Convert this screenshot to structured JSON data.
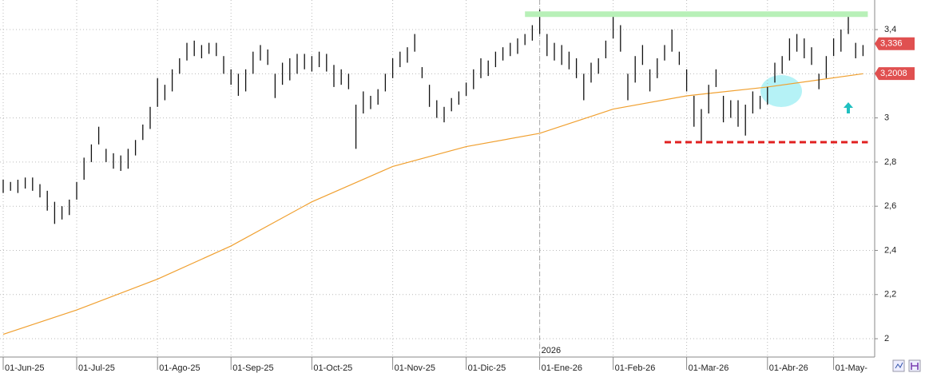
{
  "chart_data": {
    "type": "hl_bars",
    "lows": [
      2.66,
      2.67,
      2.66,
      2.68,
      2.67,
      2.64,
      2.58,
      2.52,
      2.54,
      2.56,
      2.63,
      2.72,
      2.8,
      2.88,
      2.8,
      2.77,
      2.76,
      2.77,
      2.83,
      2.9,
      2.95,
      3.05,
      3.08,
      3.12,
      3.2,
      3.26,
      3.28,
      3.27,
      3.29,
      3.28,
      3.2,
      3.15,
      3.1,
      3.12,
      3.2,
      3.26,
      3.24,
      3.09,
      3.15,
      3.17,
      3.2,
      3.22,
      3.21,
      3.23,
      3.21,
      3.14,
      3.15,
      3.13,
      2.86,
      3.02,
      3.04,
      3.06,
      3.12,
      3.18,
      3.23,
      3.25,
      3.3,
      3.18,
      3.05,
      3.0,
      2.98,
      3.03,
      3.06,
      3.1,
      3.13,
      3.18,
      3.19,
      3.23,
      3.26,
      3.28,
      3.29,
      3.33,
      3.35,
      3.38,
      3.28,
      3.26,
      3.24,
      3.22,
      3.18,
      3.08,
      3.16,
      3.2,
      3.27,
      3.36,
      3.3,
      3.08,
      3.16,
      3.24,
      3.12,
      3.18,
      3.26,
      3.3,
      3.24,
      3.12,
      2.96,
      2.89,
      3.02,
      3.14,
      2.98,
      3.0,
      2.96,
      2.92,
      3.02,
      3.04,
      3.06,
      3.16,
      3.2,
      3.26,
      3.3,
      3.27,
      3.24,
      3.13,
      3.18,
      3.28,
      3.3,
      3.38,
      3.27,
      3.28
    ],
    "highs": [
      2.72,
      2.71,
      2.72,
      2.73,
      2.73,
      2.7,
      2.67,
      2.62,
      2.6,
      2.63,
      2.71,
      2.82,
      2.88,
      2.96,
      2.86,
      2.84,
      2.83,
      2.86,
      2.9,
      2.97,
      3.05,
      3.18,
      3.15,
      3.22,
      3.27,
      3.34,
      3.35,
      3.33,
      3.34,
      3.34,
      3.28,
      3.22,
      3.2,
      3.22,
      3.3,
      3.33,
      3.31,
      3.2,
      3.25,
      3.27,
      3.29,
      3.29,
      3.28,
      3.3,
      3.29,
      3.24,
      3.22,
      3.2,
      3.06,
      3.12,
      3.1,
      3.13,
      3.2,
      3.27,
      3.3,
      3.32,
      3.38,
      3.23,
      3.15,
      3.08,
      3.05,
      3.09,
      3.12,
      3.16,
      3.22,
      3.27,
      3.26,
      3.3,
      3.32,
      3.34,
      3.36,
      3.38,
      3.42,
      3.49,
      3.38,
      3.34,
      3.33,
      3.3,
      3.27,
      3.2,
      3.25,
      3.27,
      3.35,
      3.46,
      3.42,
      3.2,
      3.28,
      3.33,
      3.22,
      3.27,
      3.33,
      3.4,
      3.3,
      3.22,
      3.1,
      3.04,
      3.15,
      3.22,
      3.1,
      3.08,
      3.08,
      3.06,
      3.12,
      3.1,
      3.14,
      3.25,
      3.28,
      3.36,
      3.38,
      3.36,
      3.32,
      3.2,
      3.28,
      3.36,
      3.4,
      3.46,
      3.34,
      3.33
    ],
    "bar_color": "#111111",
    "sma": {
      "index": [
        0,
        10,
        21,
        31,
        42,
        53,
        63,
        73,
        83,
        93,
        104,
        117
      ],
      "values": [
        2.02,
        2.13,
        2.27,
        2.42,
        2.62,
        2.78,
        2.87,
        2.93,
        3.04,
        3.1,
        3.14,
        3.2
      ],
      "color": "#f0a030"
    },
    "resistance": {
      "value": 3.47,
      "from": 71,
      "color": "#b8f0b8"
    },
    "support": {
      "value": 2.89,
      "from": 90,
      "color": "#e02020"
    },
    "last_price": {
      "value": 3.336,
      "label": "3,336"
    },
    "sma_last": {
      "value": 3.2008,
      "label": "3,2008"
    },
    "label_color": "#e05050",
    "ylim": [
      1.917,
      3.534
    ],
    "yticks": [
      {
        "value": 2,
        "label": "2"
      },
      {
        "value": 2.2,
        "label": "2,2"
      },
      {
        "value": 2.4,
        "label": "2,4"
      },
      {
        "value": 2.6,
        "label": "2,6"
      },
      {
        "value": 2.8,
        "label": "2,8"
      },
      {
        "value": 3,
        "label": "3"
      },
      {
        "value": 3.2,
        "label": "3,2"
      },
      {
        "value": 3.4,
        "label": "3,4"
      }
    ],
    "xticks": [
      {
        "value": 0,
        "label": "01-Jun-25"
      },
      {
        "value": 10,
        "label": "01-Jul-25"
      },
      {
        "value": 21,
        "label": "01-Ago-25"
      },
      {
        "value": 31,
        "label": "01-Sep-25"
      },
      {
        "value": 42,
        "label": "01-Oct-25"
      },
      {
        "value": 53,
        "label": "01-Nov-25"
      },
      {
        "value": 63,
        "label": "01-Dic-25"
      },
      {
        "value": 73,
        "label": "01-Ene-26"
      },
      {
        "value": 83,
        "label": "01-Feb-26"
      },
      {
        "value": 93,
        "label": "01-Mar-26"
      },
      {
        "value": 104,
        "label": "01-Abr-26"
      },
      {
        "value": 113,
        "label": "01-May-"
      }
    ],
    "year_marker": {
      "value": 73,
      "label": "2026"
    },
    "grid": true
  }
}
